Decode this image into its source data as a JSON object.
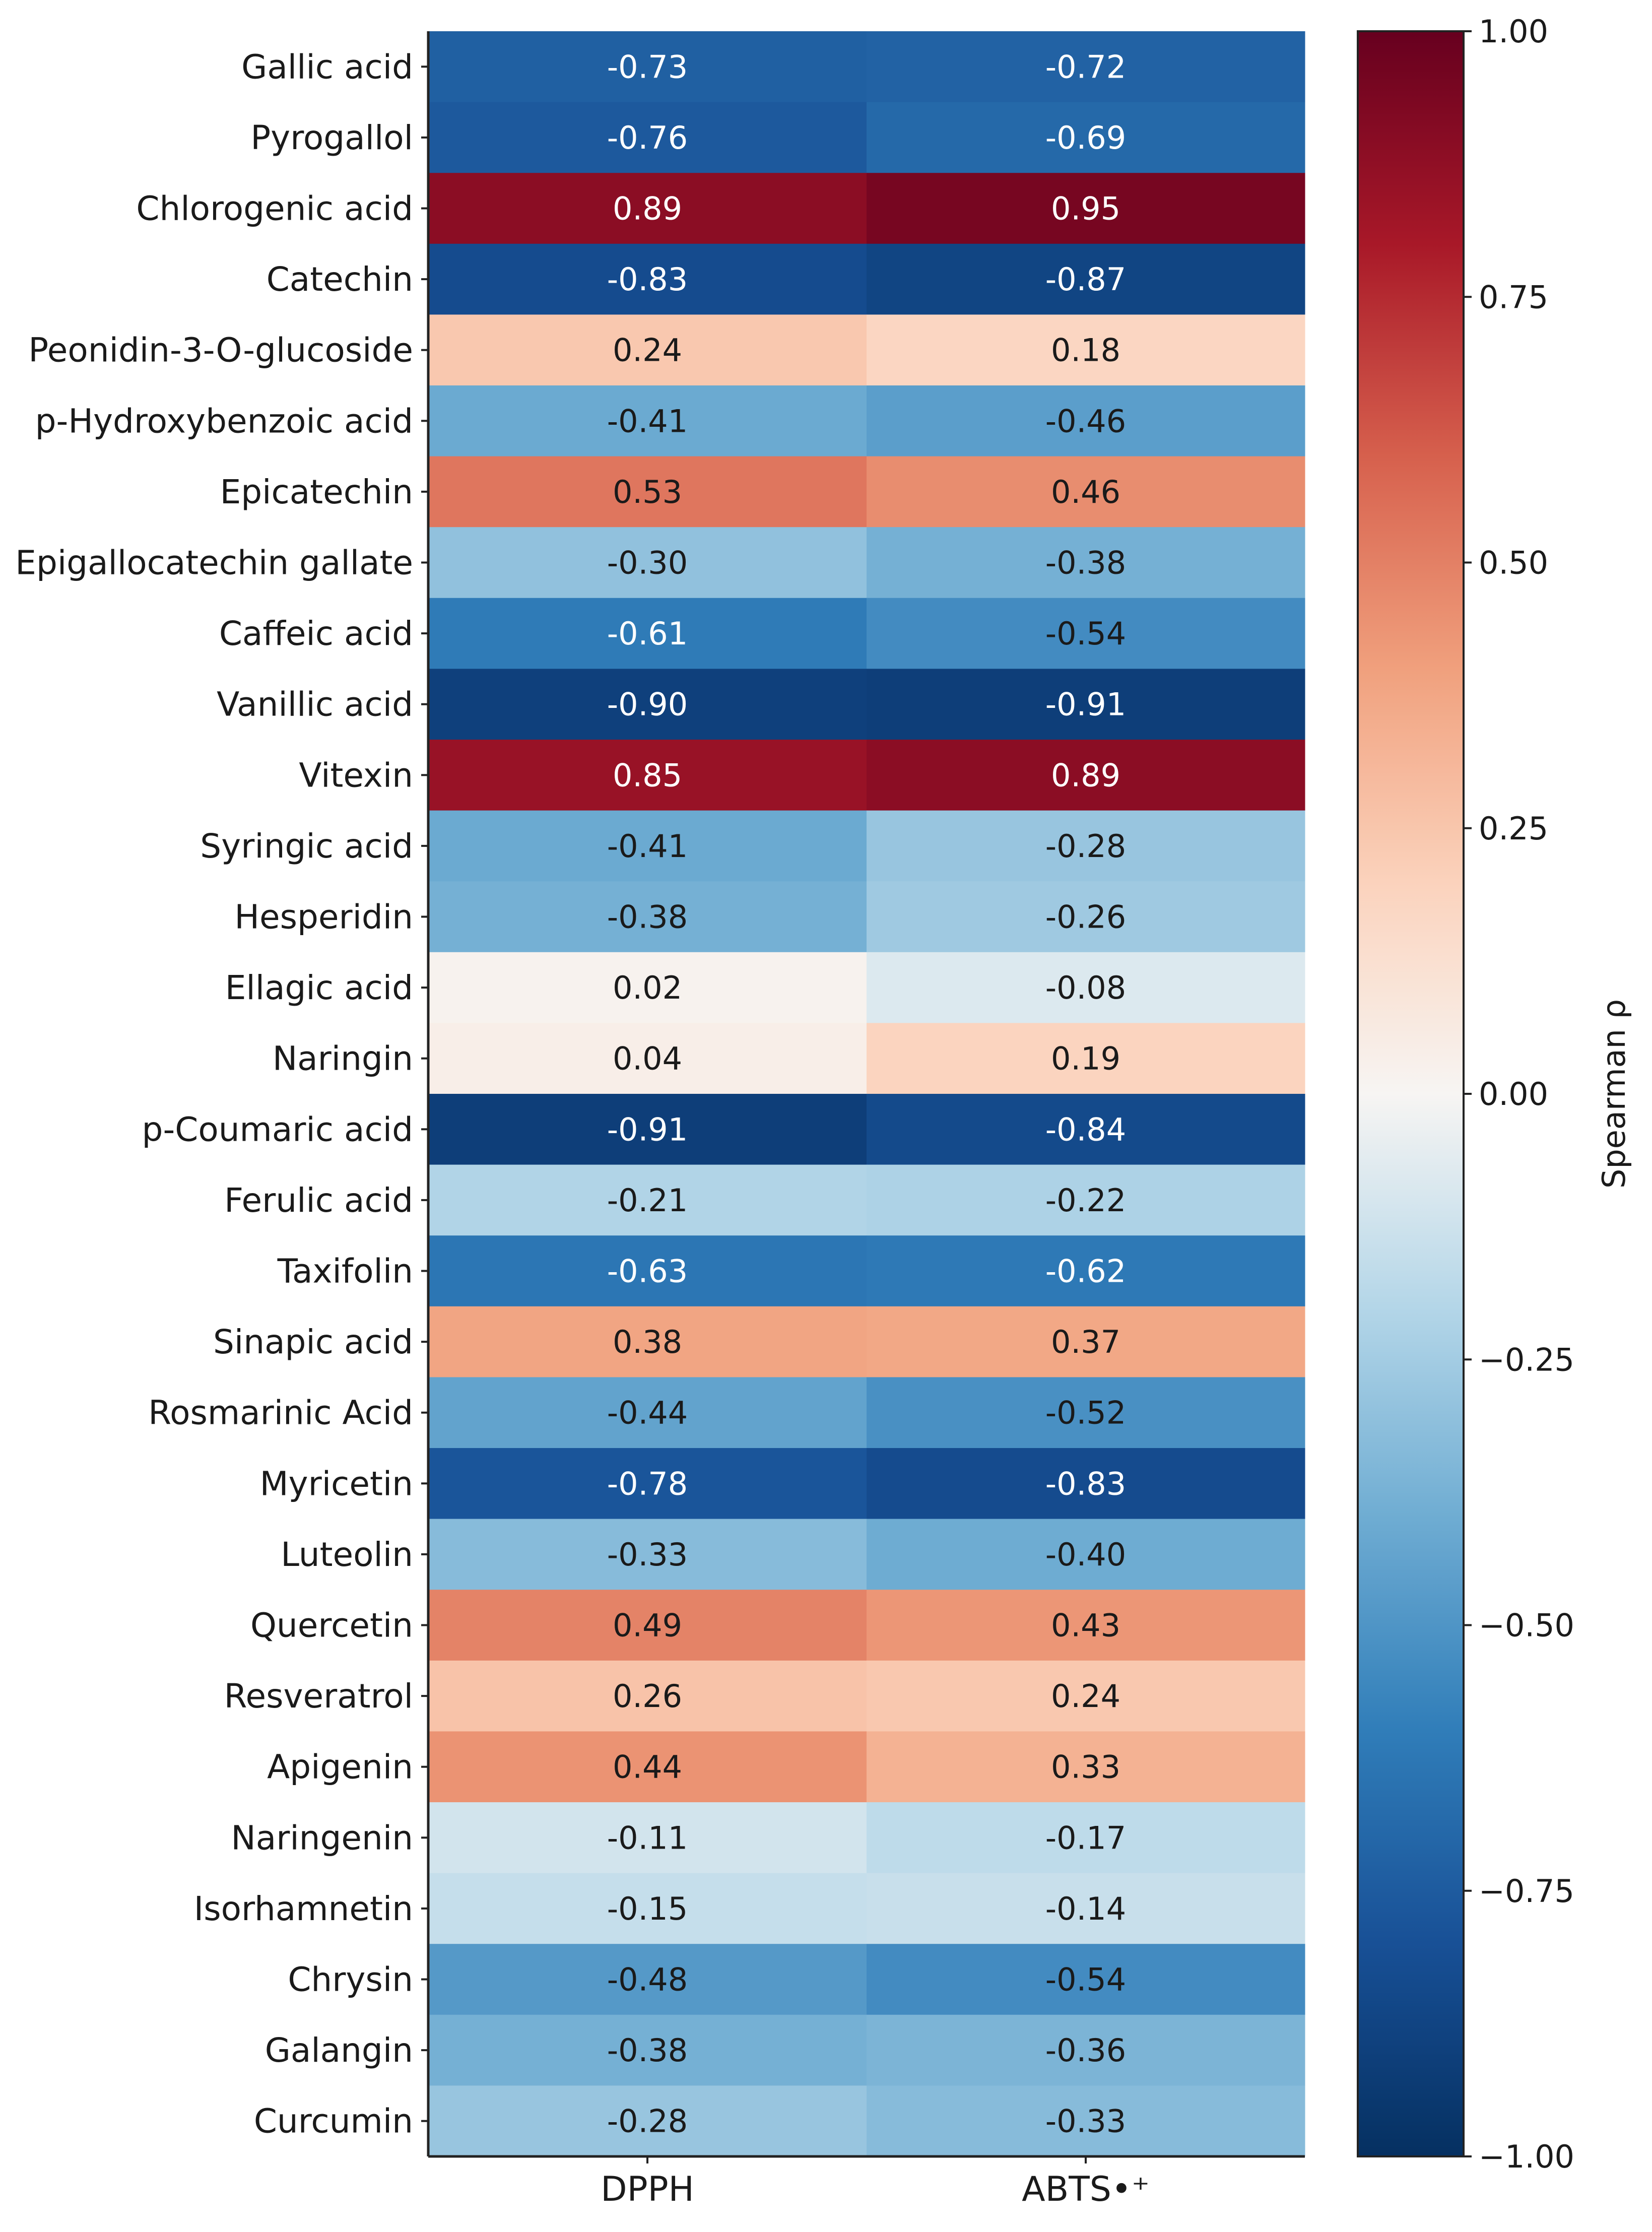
{
  "chart_data": {
    "type": "heatmap",
    "title": "",
    "columns": [
      "DPPH",
      "ABTS•⁺"
    ],
    "rows": [
      "Gallic acid",
      "Pyrogallol",
      "Chlorogenic acid",
      "Catechin",
      "Peonidin-3-O-glucoside",
      "p-Hydroxybenzoic acid",
      "Epicatechin",
      "Epigallocatechin gallate",
      "Caffeic acid",
      "Vanillic acid",
      "Vitexin",
      "Syringic acid",
      "Hesperidin",
      "Ellagic acid",
      "Naringin",
      "p-Coumaric acid",
      "Ferulic acid",
      "Taxifolin",
      "Sinapic acid",
      "Rosmarinic Acid",
      "Myricetin",
      "Luteolin",
      "Quercetin",
      "Resveratrol",
      "Apigenin",
      "Naringenin",
      "Isorhamnetin",
      "Chrysin",
      "Galangin",
      "Curcumin"
    ],
    "values": [
      [
        -0.73,
        -0.72
      ],
      [
        -0.76,
        -0.69
      ],
      [
        0.89,
        0.95
      ],
      [
        -0.83,
        -0.87
      ],
      [
        0.24,
        0.18
      ],
      [
        -0.41,
        -0.46
      ],
      [
        0.53,
        0.46
      ],
      [
        -0.3,
        -0.38
      ],
      [
        -0.61,
        -0.54
      ],
      [
        -0.9,
        -0.91
      ],
      [
        0.85,
        0.89
      ],
      [
        -0.41,
        -0.28
      ],
      [
        -0.38,
        -0.26
      ],
      [
        0.02,
        -0.08
      ],
      [
        0.04,
        0.19
      ],
      [
        -0.91,
        -0.84
      ],
      [
        -0.21,
        -0.22
      ],
      [
        -0.63,
        -0.62
      ],
      [
        0.38,
        0.37
      ],
      [
        -0.44,
        -0.52
      ],
      [
        -0.78,
        -0.83
      ],
      [
        -0.33,
        -0.4
      ],
      [
        0.49,
        0.43
      ],
      [
        0.26,
        0.24
      ],
      [
        0.44,
        0.33
      ],
      [
        -0.11,
        -0.17
      ],
      [
        -0.15,
        -0.14
      ],
      [
        -0.48,
        -0.54
      ],
      [
        -0.38,
        -0.36
      ],
      [
        -0.28,
        -0.33
      ]
    ],
    "colorbar": {
      "label": "Spearman ρ",
      "range": [
        -1.0,
        1.0
      ],
      "ticks": [
        "1.00",
        "0.75",
        "0.50",
        "0.25",
        "0.00",
        "−0.25",
        "−0.50",
        "−0.75",
        "−1.00"
      ],
      "colormap": "RdBu_r",
      "colors": {
        "low": "#053061",
        "mid": "#f7f7f7",
        "high": "#67001f"
      }
    }
  }
}
